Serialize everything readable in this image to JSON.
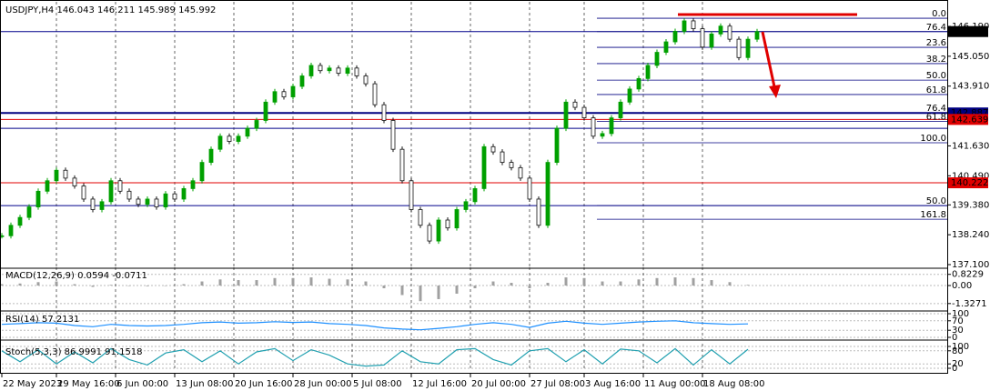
{
  "chart_data": [
    {
      "type": "candlestick",
      "title": "USDJPY,H4  146.043 146.211 145.989 145.992",
      "up_color": "#00a000",
      "down_color": "#111111",
      "xlim": [
        0,
        208
      ],
      "ylim": [
        136.996,
        147.023
      ],
      "x": [
        0,
        2,
        4,
        6,
        8,
        10,
        12,
        14,
        16,
        18,
        20,
        22,
        24,
        26,
        28,
        30,
        32,
        34,
        36,
        38,
        40,
        42,
        44,
        46,
        48,
        50,
        52,
        54,
        56,
        58,
        60,
        62,
        64,
        66,
        68,
        70,
        72,
        74,
        76,
        78,
        80,
        82,
        84,
        86,
        88,
        90,
        92,
        94,
        96,
        98,
        100,
        102,
        104,
        106,
        108,
        110,
        112,
        114,
        116,
        118,
        120,
        122,
        124,
        126,
        128,
        130,
        132,
        134,
        136,
        138,
        140,
        142,
        144,
        146,
        148,
        150,
        152,
        154,
        156,
        158,
        160,
        162,
        164,
        166
      ],
      "values": [
        138.2,
        138.6,
        138.9,
        139.3,
        139.9,
        140.3,
        140.7,
        140.4,
        140.1,
        139.6,
        139.2,
        139.5,
        140.3,
        139.9,
        139.6,
        139.4,
        139.6,
        139.3,
        139.8,
        139.6,
        140.0,
        140.3,
        141.0,
        141.5,
        142.0,
        141.8,
        142.0,
        142.3,
        142.6,
        143.3,
        143.7,
        143.5,
        143.9,
        144.3,
        144.7,
        144.5,
        144.6,
        144.4,
        144.6,
        144.3,
        144.0,
        143.2,
        142.6,
        141.5,
        140.3,
        139.2,
        138.6,
        138.0,
        138.8,
        138.5,
        139.2,
        139.5,
        140.0,
        141.6,
        141.4,
        141.0,
        140.8,
        140.4,
        139.6,
        138.6,
        141.0,
        142.3,
        143.3,
        143.1,
        142.7,
        142.0,
        142.1,
        142.7,
        143.3,
        143.8,
        144.2,
        144.7,
        145.2,
        145.6,
        146.0,
        146.4,
        146.1,
        145.4,
        145.9,
        146.2,
        145.7,
        145.0,
        145.7,
        145.992
      ],
      "yticks": [
        {
          "value": 146.19,
          "label": "146.190"
        },
        {
          "value": 145.05,
          "label": "145.050"
        },
        {
          "value": 143.91,
          "label": "143.910"
        },
        {
          "value": 141.63,
          "label": "141.630"
        },
        {
          "value": 140.49,
          "label": "140.490"
        },
        {
          "value": 139.38,
          "label": "139.380"
        },
        {
          "value": 138.24,
          "label": "138.240"
        },
        {
          "value": 137.1,
          "label": "137.100"
        }
      ],
      "xticks": [
        {
          "value": 0,
          "label": "22 May 2023"
        },
        {
          "value": 12,
          "label": "29 May 16:00"
        },
        {
          "value": 25,
          "label": "6 Jun 00:00"
        },
        {
          "value": 38,
          "label": "13 Jun 08:00"
        },
        {
          "value": 51,
          "label": "20 Jun 16:00"
        },
        {
          "value": 64,
          "label": "28 Jun 00:00"
        },
        {
          "value": 77,
          "label": "5 Jul 08:00"
        },
        {
          "value": 90,
          "label": "12 Jul 16:00"
        },
        {
          "value": 103,
          "label": "20 Jul 00:00"
        },
        {
          "value": 116,
          "label": "27 Jul 08:00"
        },
        {
          "value": 128,
          "label": "3 Aug 16:00"
        },
        {
          "value": 141,
          "label": "11 Aug 00:00"
        },
        {
          "value": 154,
          "label": "18 Aug 08:00"
        }
      ],
      "hlines": [
        {
          "value": 145.992,
          "color": "#00008b",
          "tag_color": "#000000"
        },
        {
          "value": 142.887,
          "color": "#000080",
          "tag_color": "#000080"
        },
        {
          "value": 142.639,
          "color": "#e00000",
          "tag_color": "#e00000"
        },
        {
          "value": 142.3,
          "color": "#00008b"
        },
        {
          "value": 140.222,
          "color": "#e00000",
          "tag_color": "#e00000"
        },
        {
          "value": 139.35,
          "color": "#00008b"
        }
      ],
      "fib": [
        {
          "value": 146.5,
          "label": "0.0"
        },
        {
          "value": 145.99,
          "label": "76.4"
        },
        {
          "value": 145.39,
          "label": "23.6"
        },
        {
          "value": 144.77,
          "label": "38.2"
        },
        {
          "value": 144.14,
          "label": "50.0"
        },
        {
          "value": 143.59,
          "label": "61.8"
        },
        {
          "value": 142.89,
          "label": "76.4"
        },
        {
          "value": 142.57,
          "label": "61.8"
        },
        {
          "value": 141.75,
          "label": "100.0"
        },
        {
          "value": 139.35,
          "label": "50.0"
        },
        {
          "value": 138.83,
          "label": "161.8"
        }
      ]
    },
    {
      "type": "bar",
      "title": "MACD(12,26,9) 0.0594 -0.0711",
      "color": "#a0a0a0",
      "xlim": [
        0,
        208
      ],
      "ylim": [
        -1.74,
        1.14
      ],
      "yticks": [
        0.8229,
        {
          "value": 0,
          "label": "0.00"
        },
        -1.3271
      ],
      "x": [
        0,
        4,
        8,
        12,
        16,
        20,
        24,
        28,
        32,
        36,
        40,
        44,
        48,
        52,
        56,
        60,
        64,
        68,
        72,
        76,
        80,
        84,
        88,
        92,
        96,
        100,
        104,
        108,
        112,
        116,
        120,
        124,
        128,
        132,
        136,
        140,
        144,
        148,
        152,
        156,
        160,
        164
      ],
      "values": [
        0.1,
        0.15,
        0.25,
        0.3,
        0.1,
        -0.1,
        0.05,
        0.0,
        -0.05,
        0.0,
        0.1,
        0.3,
        0.45,
        0.4,
        0.4,
        0.55,
        0.55,
        0.6,
        0.5,
        0.45,
        0.3,
        -0.2,
        -0.7,
        -1.15,
        -1.0,
        -0.6,
        -0.2,
        0.3,
        0.2,
        -0.2,
        0.2,
        0.6,
        0.55,
        0.3,
        0.3,
        0.45,
        0.55,
        0.6,
        0.55,
        0.4,
        0.25,
        0.05
      ]
    },
    {
      "type": "line",
      "title": "RSI(14) 57.2131",
      "color": "#1e90ff",
      "xlim": [
        0,
        208
      ],
      "ylim": [
        0,
        100
      ],
      "yticks": [
        100,
        70,
        30,
        0
      ],
      "x": [
        0,
        4,
        8,
        12,
        16,
        20,
        24,
        28,
        32,
        36,
        40,
        44,
        48,
        52,
        56,
        60,
        64,
        68,
        72,
        76,
        80,
        84,
        88,
        92,
        96,
        100,
        104,
        108,
        112,
        116,
        120,
        124,
        128,
        132,
        136,
        140,
        144,
        148,
        152,
        156,
        160,
        164
      ],
      "values": [
        55,
        58,
        62,
        60,
        50,
        45,
        55,
        50,
        48,
        50,
        55,
        62,
        65,
        60,
        62,
        66,
        63,
        65,
        58,
        55,
        50,
        40,
        35,
        32,
        38,
        45,
        55,
        62,
        55,
        42,
        60,
        68,
        60,
        55,
        60,
        65,
        68,
        70,
        62,
        58,
        55,
        57
      ]
    },
    {
      "type": "line",
      "title": "Stoch(5,3,3) 86.9991 91.1518",
      "color": "#20a0b0",
      "xlim": [
        0,
        208
      ],
      "ylim": [
        0,
        100
      ],
      "yticks": [
        100,
        80,
        20,
        0
      ],
      "x": [
        0,
        4,
        8,
        12,
        16,
        20,
        24,
        28,
        32,
        36,
        40,
        44,
        48,
        52,
        56,
        60,
        64,
        68,
        72,
        76,
        80,
        84,
        88,
        92,
        96,
        100,
        104,
        108,
        112,
        116,
        120,
        124,
        128,
        132,
        136,
        140,
        144,
        148,
        152,
        156,
        160,
        164
      ],
      "values": [
        80,
        30,
        85,
        20,
        75,
        25,
        90,
        40,
        15,
        70,
        85,
        30,
        80,
        20,
        75,
        90,
        35,
        85,
        60,
        20,
        10,
        15,
        80,
        30,
        20,
        85,
        90,
        40,
        15,
        80,
        90,
        30,
        85,
        20,
        88,
        80,
        25,
        90,
        15,
        85,
        20,
        87
      ]
    }
  ]
}
